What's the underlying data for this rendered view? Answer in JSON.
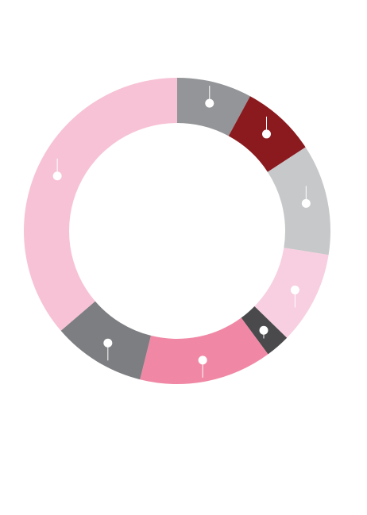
{
  "chart_data": {
    "type": "pie",
    "style": "donut",
    "title": "",
    "legend": "none",
    "start_angle_deg": 0,
    "direction": "clockwise",
    "slices": [
      {
        "value": 7.9,
        "color": "#939598"
      },
      {
        "value": 7.9,
        "color": "#8b1a1f"
      },
      {
        "value": 11.7,
        "color": "#c7c8ca"
      },
      {
        "value": 9.8,
        "color": "#f8cfe0"
      },
      {
        "value": 2.6,
        "color": "#4a4a4c"
      },
      {
        "value": 14.0,
        "color": "#f088a5"
      },
      {
        "value": 9.8,
        "color": "#7d7e81"
      },
      {
        "value": 36.3,
        "color": "#f7c2d5"
      }
    ]
  }
}
